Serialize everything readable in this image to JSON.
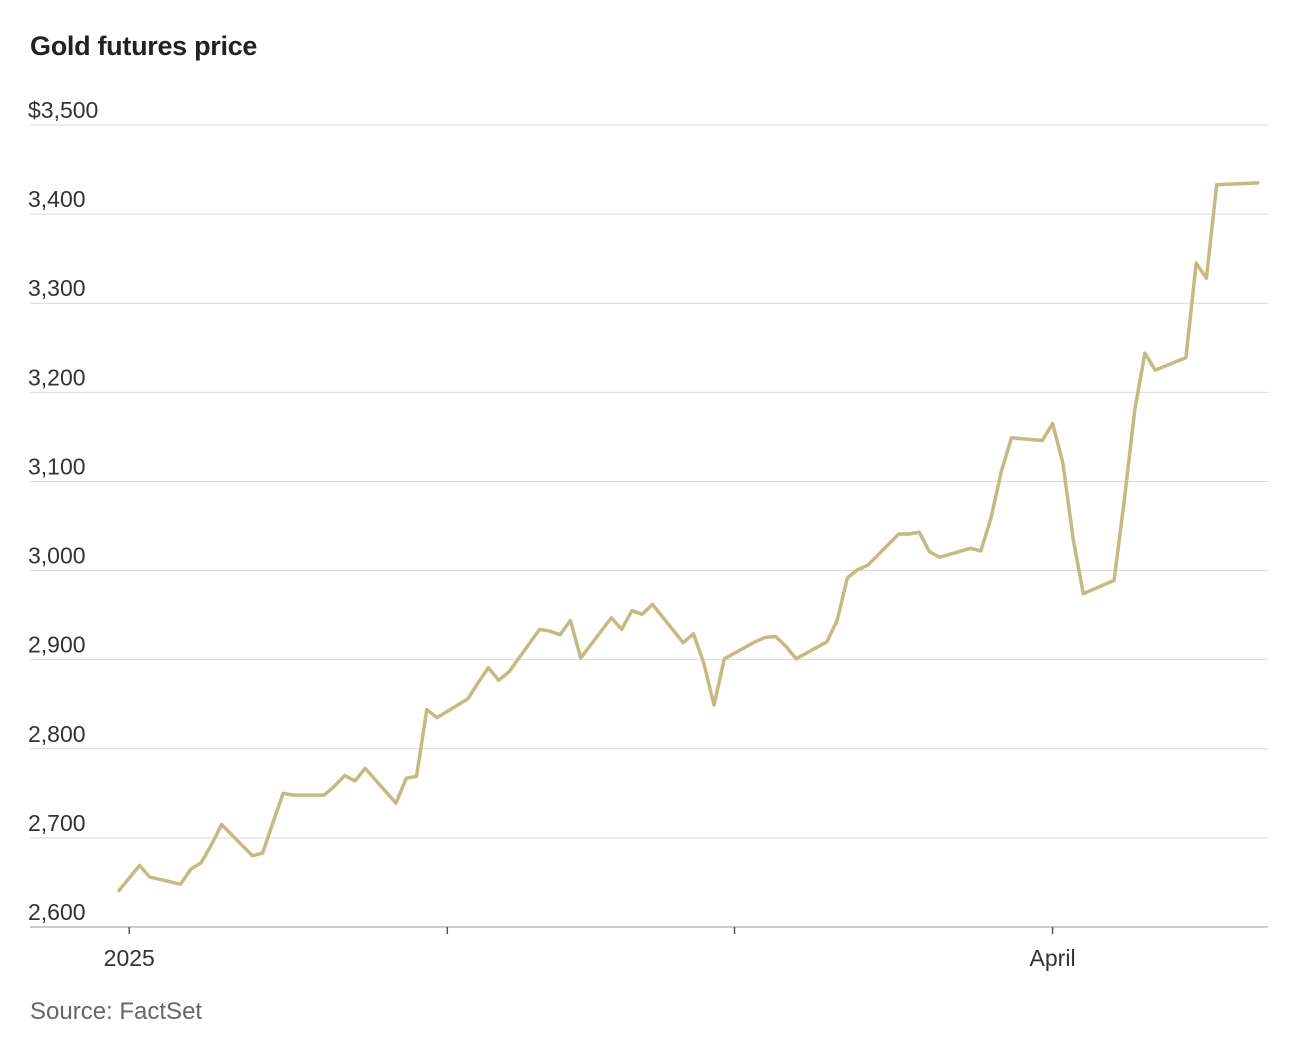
{
  "header": {
    "title": "Gold futures price"
  },
  "footer": {
    "source": "Source: FactSet"
  },
  "colors": {
    "line": "#c4ba82",
    "grid": "#d9d9d9",
    "baseline": "#bcbcbc",
    "text": "#333333"
  },
  "chart_data": {
    "type": "line",
    "title": "Gold futures price",
    "xlabel": "",
    "ylabel": "",
    "ylim": [
      2600,
      3500
    ],
    "yticks": [
      3500,
      3400,
      3300,
      3200,
      3100,
      3000,
      2900,
      2800,
      2700,
      2600
    ],
    "ytick_labels": [
      "$3,500",
      "3,400",
      "3,300",
      "3,200",
      "3,100",
      "3,000",
      "2,900",
      "2,800",
      "2,700",
      "2,600"
    ],
    "xlim": [
      "2024-12-31",
      "2025-04-22"
    ],
    "xticks": [
      {
        "date": "2025-01-01",
        "label": "2025"
      },
      {
        "date": "2025-02-01",
        "label": ""
      },
      {
        "date": "2025-03-01",
        "label": ""
      },
      {
        "date": "2025-04-01",
        "label": "April"
      }
    ],
    "grid": true,
    "legend": "none",
    "series": [
      {
        "x": [
          "2024-12-31",
          "2025-01-02",
          "2025-01-03",
          "2025-01-06",
          "2025-01-07",
          "2025-01-08",
          "2025-01-09",
          "2025-01-10",
          "2025-01-13",
          "2025-01-14",
          "2025-01-15",
          "2025-01-16",
          "2025-01-17",
          "2025-01-20",
          "2025-01-21",
          "2025-01-22",
          "2025-01-23",
          "2025-01-24",
          "2025-01-27",
          "2025-01-28",
          "2025-01-29",
          "2025-01-30",
          "2025-01-31",
          "2025-02-03",
          "2025-02-04",
          "2025-02-05",
          "2025-02-06",
          "2025-02-07",
          "2025-02-10",
          "2025-02-11",
          "2025-02-12",
          "2025-02-13",
          "2025-02-14",
          "2025-02-17",
          "2025-02-18",
          "2025-02-19",
          "2025-02-20",
          "2025-02-21",
          "2025-02-24",
          "2025-02-25",
          "2025-02-26",
          "2025-02-27",
          "2025-02-28",
          "2025-03-03",
          "2025-03-04",
          "2025-03-05",
          "2025-03-06",
          "2025-03-07",
          "2025-03-10",
          "2025-03-11",
          "2025-03-12",
          "2025-03-13",
          "2025-03-14",
          "2025-03-17",
          "2025-03-18",
          "2025-03-19",
          "2025-03-20",
          "2025-03-21",
          "2025-03-24",
          "2025-03-25",
          "2025-03-26",
          "2025-03-27",
          "2025-03-28",
          "2025-03-31",
          "2025-04-01",
          "2025-04-02",
          "2025-04-03",
          "2025-04-04",
          "2025-04-07",
          "2025-04-08",
          "2025-04-09",
          "2025-04-10",
          "2025-04-11",
          "2025-04-14",
          "2025-04-15",
          "2025-04-16",
          "2025-04-17",
          "2025-04-21"
        ],
        "values": [
          2641,
          2669,
          2656,
          2648,
          2665,
          2672,
          2692,
          2715,
          2680,
          2683,
          2717,
          2750,
          2748,
          2748,
          2758,
          2770,
          2764,
          2778,
          2739,
          2767,
          2769,
          2844,
          2835,
          2856,
          2874,
          2891,
          2877,
          2886,
          2934,
          2932,
          2928,
          2944,
          2902,
          2947,
          2934,
          2955,
          2951,
          2962,
          2919,
          2929,
          2896,
          2849,
          2901,
          2920,
          2925,
          2926,
          2915,
          2901,
          2920,
          2944,
          2992,
          3001,
          3006,
          3041,
          3041,
          3043,
          3021,
          3015,
          3025,
          3022,
          3059,
          3111,
          3149,
          3146,
          3165,
          3121,
          3036,
          2974,
          2989,
          3080,
          3179,
          3244,
          3225,
          3239,
          3345,
          3328,
          3433,
          3435
        ]
      }
    ]
  }
}
